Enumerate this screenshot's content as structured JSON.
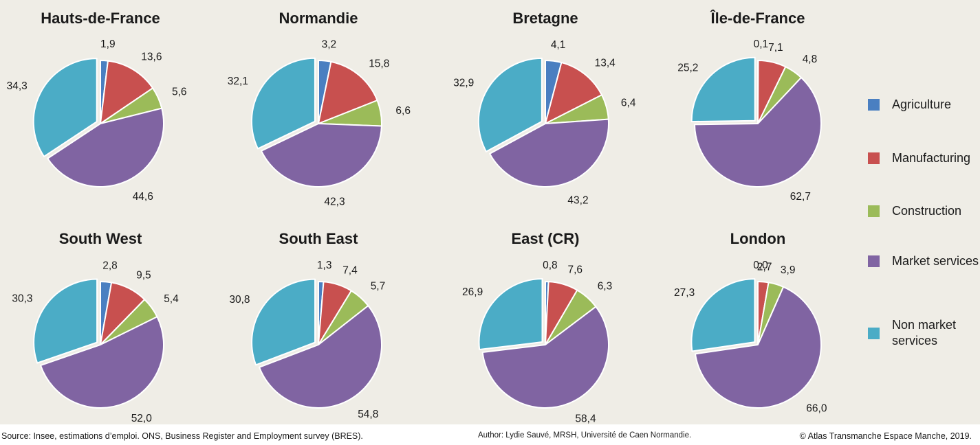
{
  "legend": [
    {
      "key": "agriculture",
      "label": "Agriculture",
      "color": "#4a7fc1"
    },
    {
      "key": "manufacturing",
      "label": "Manufacturing",
      "color": "#c8504f"
    },
    {
      "key": "construction",
      "label": "Construction",
      "color": "#9bbb59"
    },
    {
      "key": "market_services",
      "label": "Market services",
      "color": "#8064a2"
    },
    {
      "key": "non_market_services",
      "label": "Non market services",
      "color": "#4bacc6"
    }
  ],
  "chart_data": {
    "type": "pie",
    "unit": "%",
    "categories": [
      "Agriculture",
      "Manufacturing",
      "Construction",
      "Market services",
      "Non market services"
    ],
    "charts": [
      {
        "title": "Hauts-de-France",
        "values": [
          1.9,
          13.6,
          5.6,
          44.6,
          34.3
        ],
        "labels": [
          "1,9",
          "13,6",
          "5,6",
          "44,6",
          "34,3"
        ]
      },
      {
        "title": "Normandie",
        "values": [
          3.2,
          15.8,
          6.6,
          42.3,
          32.1
        ],
        "labels": [
          "3,2",
          "15,8",
          "6,6",
          "42,3",
          "32,1"
        ]
      },
      {
        "title": "Bretagne",
        "values": [
          4.1,
          13.4,
          6.4,
          43.2,
          32.9
        ],
        "labels": [
          "4,1",
          "13,4",
          "6,4",
          "43,2",
          "32,9"
        ]
      },
      {
        "title": "Île-de-France",
        "values": [
          0.1,
          7.1,
          4.8,
          62.7,
          25.2
        ],
        "labels": [
          "0,1",
          "7,1",
          "4,8",
          "62,7",
          "25,2"
        ]
      },
      {
        "title": "South West",
        "values": [
          2.8,
          9.5,
          5.4,
          52.0,
          30.3
        ],
        "labels": [
          "2,8",
          "9,5",
          "5,4",
          "52,0",
          "30,3"
        ]
      },
      {
        "title": "South East",
        "values": [
          1.3,
          7.4,
          5.7,
          54.8,
          30.8
        ],
        "labels": [
          "1,3",
          "7,4",
          "5,7",
          "54,8",
          "30,8"
        ]
      },
      {
        "title": "East (CR)",
        "values": [
          0.8,
          7.6,
          6.3,
          58.4,
          26.9
        ],
        "labels": [
          "0,8",
          "7,6",
          "6,3",
          "58,4",
          "26,9"
        ]
      },
      {
        "title": "London",
        "values": [
          0.0,
          2.7,
          3.9,
          66.0,
          27.3
        ],
        "labels": [
          "0,0",
          "2,7",
          "3,9",
          "66,0",
          "27,3"
        ]
      }
    ]
  },
  "footer": {
    "source": "Source: Insee, estimations d’emploi. ONS, Business Register and Employment survey (BRES).",
    "author": "Author: Lydie Sauvé, MRSH, Université de Caen Normandie.",
    "copyright": "© Atlas Transmanche Espace Manche, 2019."
  }
}
